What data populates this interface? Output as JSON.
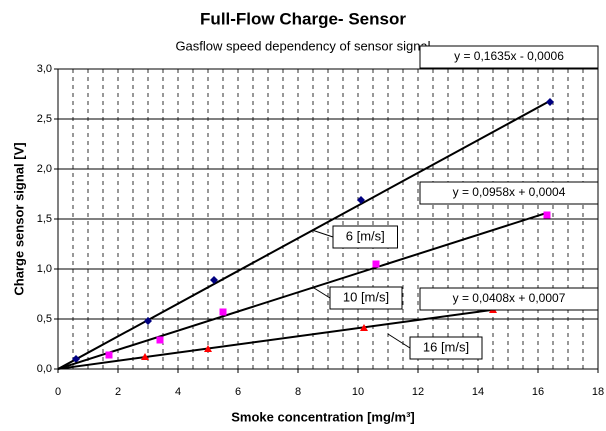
{
  "chart_data": {
    "type": "scatter",
    "title": "Full-Flow Charge- Sensor",
    "subtitle": "Gasflow speed dependency of sensor signal",
    "x_label": "Smoke concentration  [mg/m³]",
    "y_label": "Charge sensor signal  [V]",
    "xlim": [
      0,
      18
    ],
    "xticks": [
      0,
      2,
      4,
      6,
      8,
      10,
      12,
      14,
      16,
      18
    ],
    "ylim": [
      0,
      3
    ],
    "yticks": [
      {
        "value": 0,
        "label": "0,0"
      },
      {
        "value": 0.5,
        "label": "0,5"
      },
      {
        "value": 1,
        "label": "1,0"
      },
      {
        "value": 1.5,
        "label": "1,5"
      },
      {
        "value": 2,
        "label": "2,0"
      },
      {
        "value": 2.5,
        "label": "2,5"
      },
      {
        "value": 3,
        "label": "3,0"
      }
    ],
    "grid": true,
    "series": [
      {
        "name": "6 [m/s]",
        "color": "#000080",
        "marker": "diamond",
        "x": [
          0.6,
          3.0,
          5.2,
          10.1,
          16.4
        ],
        "values": [
          0.1,
          0.48,
          0.89,
          1.69,
          2.67
        ],
        "trendline": {
          "slope": 0.1635,
          "intercept": -0.0006,
          "equation": "y = 0,1635x - 0,0006"
        }
      },
      {
        "name": "10 [m/s]",
        "color": "#ff00ff",
        "marker": "square",
        "x": [
          1.7,
          3.4,
          5.5,
          10.6,
          16.3
        ],
        "values": [
          0.14,
          0.29,
          0.57,
          1.05,
          1.54
        ],
        "trendline": {
          "slope": 0.0958,
          "intercept": 0.0004,
          "equation": "y = 0,0958x + 0,0004"
        }
      },
      {
        "name": "16 [m/s]",
        "color": "#ff0000",
        "marker": "triangle",
        "x": [
          2.9,
          5.0,
          10.2,
          14.5,
          16.4
        ],
        "values": [
          0.12,
          0.2,
          0.41,
          0.59,
          0.67
        ],
        "trendline": {
          "slope": 0.0408,
          "intercept": 0.0007,
          "equation": "y = 0,0408x + 0,0007"
        }
      }
    ]
  }
}
